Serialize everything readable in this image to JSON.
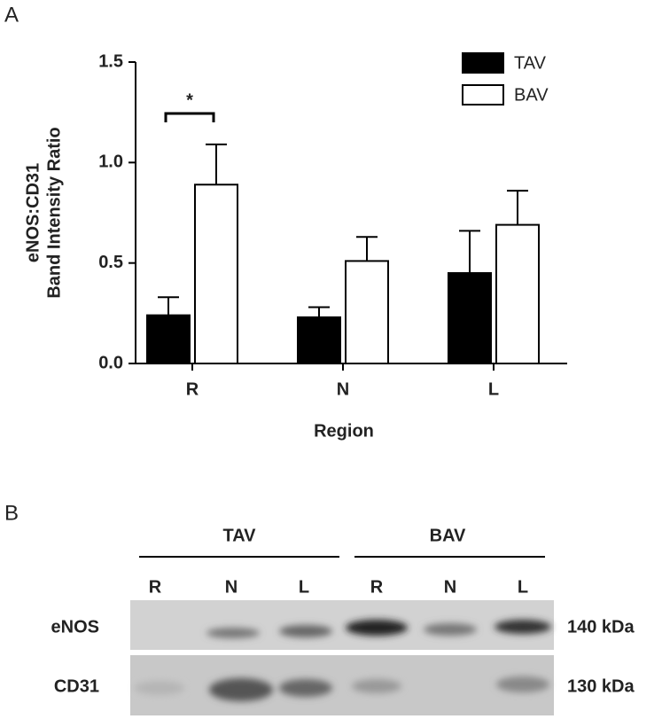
{
  "panels": {
    "a": "A",
    "b": "B"
  },
  "chart_data": {
    "type": "bar",
    "ylabel": [
      "eNOS:CD31",
      "Band Intensity Ratio"
    ],
    "xlabel": "Region",
    "categories": [
      "R",
      "N",
      "L"
    ],
    "series": [
      {
        "name": "TAV",
        "color": "#000000",
        "values": [
          0.24,
          0.23,
          0.45
        ],
        "error": [
          0.09,
          0.05,
          0.21
        ]
      },
      {
        "name": "BAV",
        "color": "#ffffff",
        "values": [
          0.89,
          0.51,
          0.69
        ],
        "error": [
          0.2,
          0.12,
          0.17
        ]
      }
    ],
    "annotation": "*",
    "ylim": [
      0,
      1.5
    ],
    "yticks": [
      {
        "value": 0,
        "label": "0.0"
      },
      0.5,
      {
        "value": 1,
        "label": "1.0"
      },
      1.5
    ]
  },
  "blot": {
    "groups": [
      "TAV",
      "BAV"
    ],
    "lanes": [
      "R",
      "N",
      "L",
      "R",
      "N",
      "L"
    ],
    "rows": [
      {
        "label": "eNOS",
        "size": "140 kDa"
      },
      {
        "label": "CD31",
        "size": "130 kDa"
      }
    ]
  }
}
